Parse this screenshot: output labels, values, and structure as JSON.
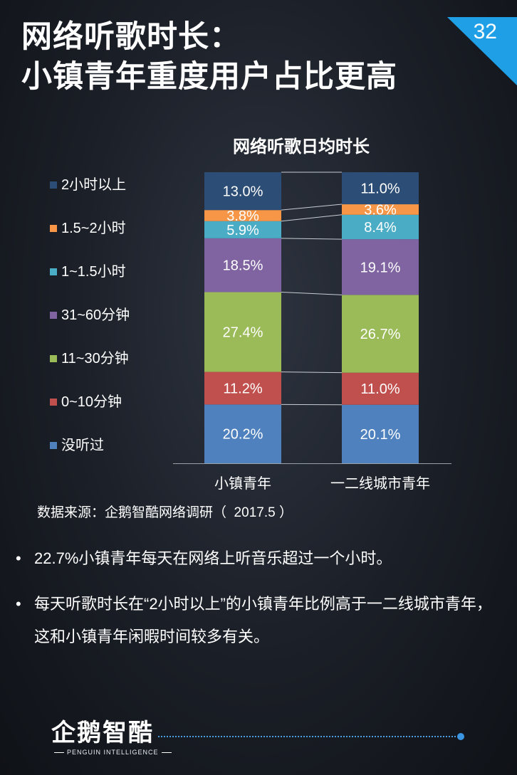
{
  "page": {
    "number": "32",
    "accent": "#1fa0e6"
  },
  "title": {
    "line1": "网络听歌时长：",
    "line2": "小镇青年重度用户占比更高"
  },
  "chart_data": {
    "type": "bar",
    "stacked": true,
    "title": "网络听歌日均时长",
    "categories": [
      "小镇青年",
      "一二线城市青年"
    ],
    "series": [
      {
        "name": "没听过",
        "color": "#4e81bd",
        "values": [
          20.2,
          20.1
        ],
        "labels": [
          "20.2%",
          "20.1%"
        ]
      },
      {
        "name": "0~10分钟",
        "color": "#c0504d",
        "values": [
          11.2,
          11.0
        ],
        "labels": [
          "11.2%",
          "11.0%"
        ]
      },
      {
        "name": "11~30分钟",
        "color": "#9bbb59",
        "values": [
          27.4,
          26.7
        ],
        "labels": [
          "27.4%",
          "26.7%"
        ]
      },
      {
        "name": "31~60分钟",
        "color": "#8064a2",
        "values": [
          18.5,
          19.1
        ],
        "labels": [
          "18.5%",
          "19.1%"
        ]
      },
      {
        "name": "1~1.5小时",
        "color": "#4bacc6",
        "values": [
          5.9,
          8.4
        ],
        "labels": [
          "5.9%",
          "8.4%"
        ]
      },
      {
        "name": "1.5~2小时",
        "color": "#f79646",
        "values": [
          3.8,
          3.6
        ],
        "labels": [
          "3.8%",
          "3.6%"
        ]
      },
      {
        "name": "2小时以上",
        "color": "#2c4d75",
        "values": [
          13.0,
          11.0
        ],
        "labels": [
          "13.0%",
          "11.0%"
        ]
      }
    ],
    "legend_order": [
      "2小时以上",
      "1.5~2小时",
      "1~1.5小时",
      "31~60分钟",
      "11~30分钟",
      "0~10分钟",
      "没听过"
    ],
    "legend_position": "left",
    "grid": false
  },
  "source": "数据来源：企鹅智酷网络调研（  2017.5 ）",
  "bullets": [
    "22.7%小镇青年每天在网络上听音乐超过一个小时。",
    "每天听歌时长在“2小时以上”的小镇青年比例高于一二线城市青年，这和小镇青年闲暇时间较多有关。"
  ],
  "bullet_symbol": "•",
  "logo": {
    "cn": "企鹅智酷",
    "en": "PENGUIN INTELLIGENCE"
  }
}
